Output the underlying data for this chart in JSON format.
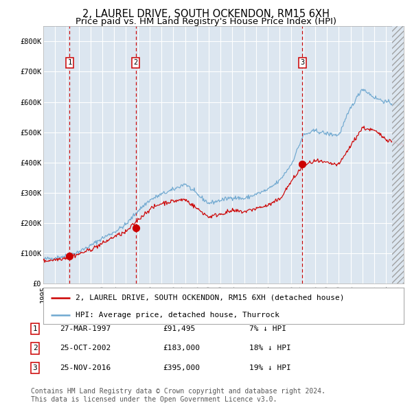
{
  "title": "2, LAUREL DRIVE, SOUTH OCKENDON, RM15 6XH",
  "subtitle": "Price paid vs. HM Land Registry's House Price Index (HPI)",
  "ylim": [
    0,
    850000
  ],
  "yticks": [
    0,
    100000,
    200000,
    300000,
    400000,
    500000,
    600000,
    700000,
    800000
  ],
  "ytick_labels": [
    "£0",
    "£100K",
    "£200K",
    "£300K",
    "£400K",
    "£500K",
    "£600K",
    "£700K",
    "£800K"
  ],
  "xlim_start": 1995.0,
  "xlim_end": 2025.5,
  "plot_bg_color": "#dce6f0",
  "grid_color": "#ffffff",
  "red_line_color": "#cc0000",
  "blue_line_color": "#6fa8d0",
  "dashed_line_color": "#cc0000",
  "hatch_start": 2024.5,
  "sale_points": [
    {
      "year": 1997.23,
      "price": 91495,
      "label": "1"
    },
    {
      "year": 2002.82,
      "price": 183000,
      "label": "2"
    },
    {
      "year": 2016.91,
      "price": 395000,
      "label": "3"
    }
  ],
  "legend_label_red": "2, LAUREL DRIVE, SOUTH OCKENDON, RM15 6XH (detached house)",
  "legend_label_blue": "HPI: Average price, detached house, Thurrock",
  "table_rows": [
    {
      "num": "1",
      "date": "27-MAR-1997",
      "price": "£91,495",
      "hpi": "7% ↓ HPI"
    },
    {
      "num": "2",
      "date": "25-OCT-2002",
      "price": "£183,000",
      "hpi": "18% ↓ HPI"
    },
    {
      "num": "3",
      "date": "25-NOV-2016",
      "price": "£395,000",
      "hpi": "19% ↓ HPI"
    }
  ],
  "footer": "Contains HM Land Registry data © Crown copyright and database right 2024.\nThis data is licensed under the Open Government Licence v3.0.",
  "title_fontsize": 10.5,
  "subtitle_fontsize": 9.5,
  "tick_fontsize": 7.5,
  "legend_fontsize": 8,
  "table_fontsize": 8,
  "footer_fontsize": 7
}
